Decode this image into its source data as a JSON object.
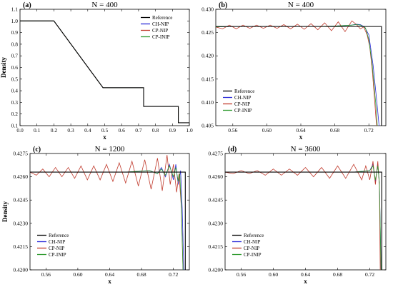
{
  "colors": {
    "reference": "#000000",
    "ch_nip": "#2a2ad8",
    "cp_nip": "#c0392b",
    "cp_inip": "#2e9a2e"
  },
  "legend_labels": [
    "Reference",
    "CH-NIP",
    "CP-NIP",
    "CP-INIP"
  ],
  "chart_data": [
    {
      "panel": "(a)",
      "title": "N = 400",
      "type": "line",
      "xlabel": "x",
      "ylabel": "Density",
      "xlim": [
        0.0,
        1.0
      ],
      "ylim": [
        0.1,
        1.1
      ],
      "xticks": [
        "0.0",
        "0.1",
        "0.2",
        "0.3",
        "0.4",
        "0.5",
        "0.6",
        "0.7",
        "0.8",
        "0.9",
        "1.0"
      ],
      "yticks": [
        "0.1",
        "0.2",
        "0.3",
        "0.4",
        "0.5",
        "0.6",
        "0.7",
        "0.8",
        "0.9",
        "1.0",
        "1.1"
      ],
      "legend": "top-right",
      "series": [
        {
          "name": "Reference",
          "x": [
            0.0,
            0.2,
            0.49,
            0.73,
            0.73,
            0.935,
            0.935,
            1.0
          ],
          "y": [
            1.0,
            1.0,
            0.426,
            0.426,
            0.265,
            0.265,
            0.125,
            0.125
          ]
        },
        {
          "name": "CH-NIP",
          "x": [
            0.0,
            0.2,
            0.49,
            0.73,
            0.73,
            0.935,
            0.935,
            1.0
          ],
          "y": [
            1.0,
            1.0,
            0.426,
            0.426,
            0.265,
            0.265,
            0.125,
            0.125
          ]
        },
        {
          "name": "CP-NIP",
          "x": [
            0.0,
            0.2,
            0.49,
            0.73,
            0.73,
            0.935,
            0.935,
            1.0
          ],
          "y": [
            1.0,
            1.0,
            0.426,
            0.426,
            0.265,
            0.265,
            0.125,
            0.125
          ]
        },
        {
          "name": "CP-INIP",
          "x": [
            0.0,
            0.2,
            0.49,
            0.73,
            0.73,
            0.935,
            0.935,
            1.0
          ],
          "y": [
            1.0,
            1.0,
            0.426,
            0.426,
            0.265,
            0.265,
            0.125,
            0.125
          ]
        }
      ]
    },
    {
      "panel": "(b)",
      "title": "N = 400",
      "type": "line",
      "xlabel": "x",
      "ylabel": "",
      "xlim": [
        0.54,
        0.74
      ],
      "ylim": [
        0.405,
        0.43
      ],
      "xticks": [
        "0.56",
        "0.60",
        "0.64",
        "0.68",
        "0.72"
      ],
      "yticks": [
        "0.405",
        "0.410",
        "0.415",
        "0.420",
        "0.425",
        "0.430"
      ],
      "legend": "bottom-left",
      "series": [
        {
          "name": "Reference",
          "x": [
            0.54,
            0.7349,
            0.7349
          ],
          "y": [
            0.4263,
            0.4263,
            0.405
          ]
        },
        {
          "name": "CH-NIP",
          "x": [
            0.54,
            0.56,
            0.6,
            0.64,
            0.66,
            0.68,
            0.69,
            0.7,
            0.705,
            0.71,
            0.715,
            0.72,
            0.725,
            0.73,
            0.732
          ],
          "y": [
            0.4262,
            0.4263,
            0.4263,
            0.4263,
            0.4263,
            0.4264,
            0.4265,
            0.4266,
            0.4268,
            0.4267,
            0.4262,
            0.4245,
            0.418,
            0.409,
            0.405
          ]
        },
        {
          "name": "CP-NIP",
          "x": [
            0.54,
            0.548,
            0.556,
            0.564,
            0.572,
            0.58,
            0.588,
            0.596,
            0.604,
            0.612,
            0.62,
            0.628,
            0.636,
            0.644,
            0.652,
            0.66,
            0.668,
            0.676,
            0.684,
            0.692,
            0.7,
            0.705,
            0.71,
            0.714,
            0.718,
            0.721,
            0.724,
            0.727,
            0.729
          ],
          "y": [
            0.4262,
            0.4258,
            0.4266,
            0.4258,
            0.4266,
            0.4259,
            0.4266,
            0.4259,
            0.4266,
            0.4259,
            0.4267,
            0.4258,
            0.4268,
            0.4257,
            0.4269,
            0.4256,
            0.4271,
            0.4254,
            0.4273,
            0.4252,
            0.4275,
            0.4268,
            0.4258,
            0.4262,
            0.4245,
            0.422,
            0.417,
            0.41,
            0.405
          ]
        },
        {
          "name": "CP-INIP",
          "x": [
            0.54,
            0.56,
            0.6,
            0.64,
            0.66,
            0.68,
            0.69,
            0.7,
            0.705,
            0.71,
            0.716,
            0.72,
            0.724,
            0.728,
            0.73
          ],
          "y": [
            0.4262,
            0.4263,
            0.4263,
            0.4263,
            0.4263,
            0.4264,
            0.4265,
            0.4266,
            0.4267,
            0.4266,
            0.426,
            0.4235,
            0.418,
            0.41,
            0.405
          ]
        }
      ]
    },
    {
      "panel": "(c)",
      "title": "N = 1200",
      "type": "line",
      "xlabel": "x",
      "ylabel": "Density",
      "xlim": [
        0.54,
        0.74
      ],
      "ylim": [
        0.42,
        0.4275
      ],
      "xticks": [
        "0.56",
        "0.60",
        "0.64",
        "0.68",
        "0.72"
      ],
      "yticks": [
        "0.4200",
        "0.4215",
        "0.4230",
        "0.4245",
        "0.4260",
        "0.4275"
      ],
      "legend": "bottom-left",
      "series": [
        {
          "name": "Reference",
          "x": [
            0.54,
            0.7349,
            0.7349
          ],
          "y": [
            0.4263,
            0.4263,
            0.42
          ]
        },
        {
          "name": "CH-NIP",
          "x": [
            0.54,
            0.6,
            0.66,
            0.69,
            0.7,
            0.705,
            0.71,
            0.715,
            0.72,
            0.723,
            0.726,
            0.729,
            0.731,
            0.733
          ],
          "y": [
            0.4263,
            0.4263,
            0.4263,
            0.4264,
            0.4262,
            0.4266,
            0.426,
            0.4268,
            0.4258,
            0.4268,
            0.4255,
            0.4264,
            0.424,
            0.42
          ]
        },
        {
          "name": "CP-NIP",
          "x": [
            0.54,
            0.548,
            0.556,
            0.564,
            0.572,
            0.58,
            0.588,
            0.596,
            0.604,
            0.612,
            0.62,
            0.628,
            0.636,
            0.644,
            0.652,
            0.66,
            0.668,
            0.676,
            0.684,
            0.692,
            0.7,
            0.706,
            0.712,
            0.716,
            0.72,
            0.724,
            0.727,
            0.73,
            0.732
          ],
          "y": [
            0.4263,
            0.4261,
            0.4265,
            0.426,
            0.4266,
            0.426,
            0.4266,
            0.4259,
            0.4267,
            0.4258,
            0.4267,
            0.4258,
            0.4268,
            0.4257,
            0.4269,
            0.4256,
            0.427,
            0.4254,
            0.4271,
            0.4252,
            0.4272,
            0.4251,
            0.4274,
            0.4255,
            0.4268,
            0.425,
            0.4262,
            0.424,
            0.42
          ]
        },
        {
          "name": "CP-INIP",
          "x": [
            0.54,
            0.6,
            0.66,
            0.69,
            0.7,
            0.705,
            0.71,
            0.715,
            0.72,
            0.723,
            0.726,
            0.728,
            0.73,
            0.732
          ],
          "y": [
            0.4263,
            0.4263,
            0.4263,
            0.4264,
            0.4262,
            0.4265,
            0.4261,
            0.4267,
            0.426,
            0.4266,
            0.4257,
            0.4262,
            0.424,
            0.42
          ]
        }
      ]
    },
    {
      "panel": "(d)",
      "title": "N = 3600",
      "type": "line",
      "xlabel": "x",
      "ylabel": "",
      "xlim": [
        0.54,
        0.74
      ],
      "ylim": [
        0.42,
        0.4275
      ],
      "xticks": [
        "0.56",
        "0.60",
        "0.64",
        "0.68",
        "0.72"
      ],
      "yticks": [
        "0.4200",
        "0.4215",
        "0.4230",
        "0.4245",
        "0.4260",
        "0.4275"
      ],
      "legend": "bottom-left",
      "series": [
        {
          "name": "Reference",
          "x": [
            0.54,
            0.7349,
            0.7349
          ],
          "y": [
            0.4263,
            0.4263,
            0.42
          ]
        },
        {
          "name": "CH-NIP",
          "x": [
            0.54,
            0.6,
            0.66,
            0.7,
            0.72,
            0.724,
            0.727,
            0.73,
            0.732,
            0.734
          ],
          "y": [
            0.4263,
            0.4263,
            0.4263,
            0.4263,
            0.4264,
            0.4268,
            0.4257,
            0.4268,
            0.4255,
            0.42
          ]
        },
        {
          "name": "CP-NIP",
          "x": [
            0.54,
            0.55,
            0.56,
            0.57,
            0.58,
            0.59,
            0.6,
            0.61,
            0.62,
            0.63,
            0.64,
            0.65,
            0.66,
            0.67,
            0.68,
            0.69,
            0.7,
            0.71,
            0.715,
            0.72,
            0.724,
            0.727,
            0.73,
            0.732,
            0.733
          ],
          "y": [
            0.4263,
            0.4262,
            0.4264,
            0.4262,
            0.4264,
            0.4261,
            0.4265,
            0.4261,
            0.4265,
            0.4261,
            0.4266,
            0.426,
            0.4266,
            0.4259,
            0.4267,
            0.4259,
            0.4268,
            0.4258,
            0.4267,
            0.4258,
            0.427,
            0.4255,
            0.427,
            0.4254,
            0.42
          ]
        },
        {
          "name": "CP-INIP",
          "x": [
            0.54,
            0.6,
            0.66,
            0.7,
            0.72,
            0.724,
            0.727,
            0.73,
            0.732,
            0.734
          ],
          "y": [
            0.4263,
            0.4263,
            0.4263,
            0.4263,
            0.4264,
            0.4267,
            0.4258,
            0.4267,
            0.4256,
            0.42
          ]
        }
      ]
    }
  ]
}
